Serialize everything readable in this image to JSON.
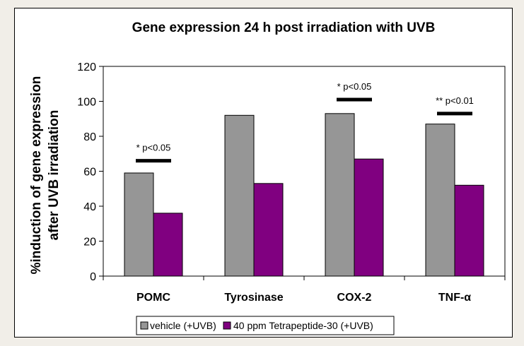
{
  "chart_data": {
    "type": "bar",
    "title": "Gene expression 24 h post irradiation with UVB",
    "xlabel": "",
    "ylabel": [
      "%induction of gene expression",
      "after UVB irradiation"
    ],
    "ylim": [
      0,
      120
    ],
    "yticks": [
      0,
      20,
      40,
      60,
      80,
      100,
      120
    ],
    "grid": false,
    "categories": [
      "POMC",
      "Tyrosinase",
      "COX-2",
      "TNF-α"
    ],
    "series": [
      {
        "name": "vehicle (+UVB)",
        "color": "#969696",
        "values": [
          59,
          92,
          93,
          87
        ]
      },
      {
        "name": "40 ppm Tetrapeptide-30 (+UVB)",
        "color": "#800080",
        "values": [
          36,
          53,
          67,
          52
        ]
      }
    ],
    "annotations": [
      {
        "category": "POMC",
        "text": "* p<0.05",
        "level": 66
      },
      {
        "category": "Tyrosinase",
        "text": null,
        "level": null
      },
      {
        "category": "COX-2",
        "text": "* p<0.05",
        "level": 101
      },
      {
        "category": "TNF-α",
        "text": "** p<0.01",
        "level": 93
      }
    ],
    "legend_position": "bottom"
  }
}
